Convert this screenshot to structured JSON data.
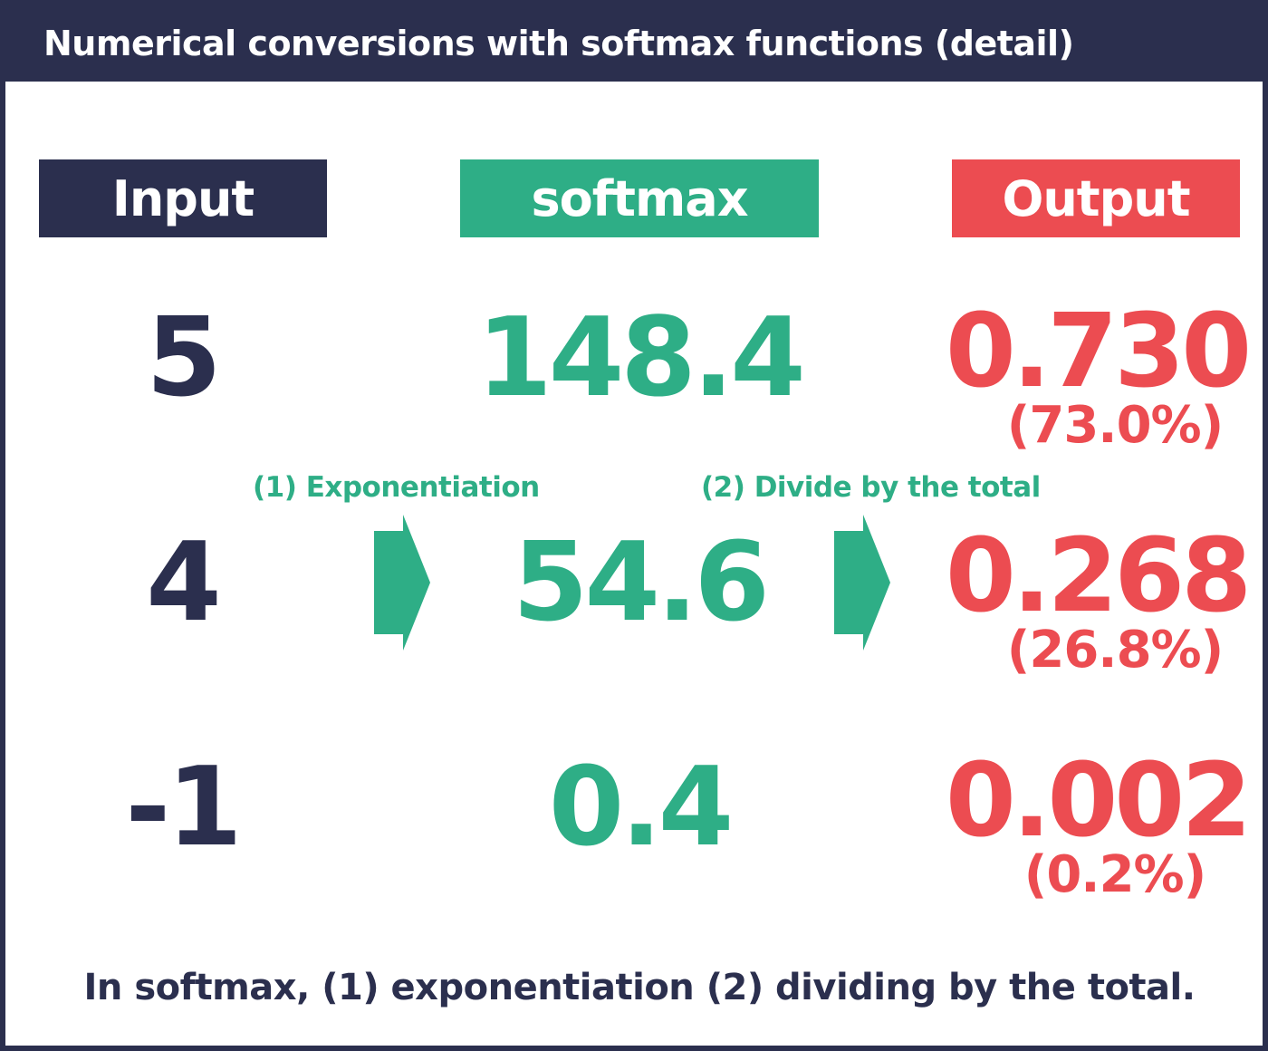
{
  "title": "Numerical conversions with softmax functions (detail)",
  "colors": {
    "navy": "#2b2f4e",
    "green": "#2eae86",
    "red": "#ec4c51",
    "background": "#ffffff"
  },
  "headers": {
    "input": "Input",
    "softmax": "softmax",
    "output": "Output"
  },
  "rows": [
    {
      "input": "5",
      "softmax": "148.4",
      "output": "0.730",
      "percent": "(73.0%)"
    },
    {
      "input": "4",
      "softmax": "54.6",
      "output": "0.268",
      "percent": "(26.8%)"
    },
    {
      "input": "-1",
      "softmax": "0.4",
      "output": "0.002",
      "percent": "(0.2%)"
    }
  ],
  "steps": {
    "step1": "(1) Exponentiation",
    "step2": "(2) Divide by the total"
  },
  "summary": "In softmax, (1) exponentiation (2) dividing by the total."
}
